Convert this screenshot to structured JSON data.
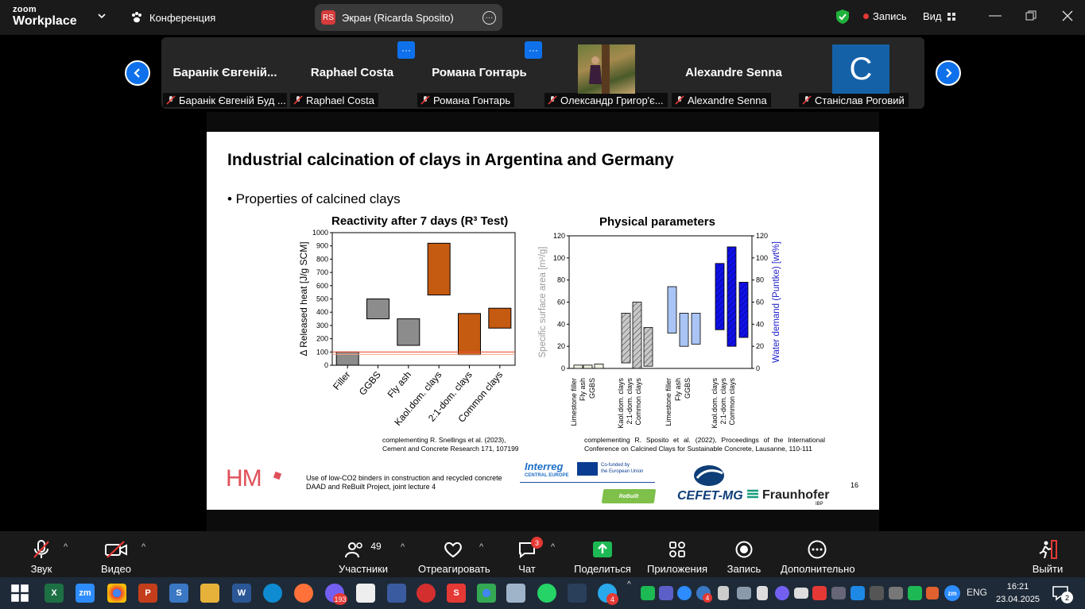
{
  "zoom": {
    "logo_top": "zoom",
    "logo_bottom": "Workplace",
    "conference_label": "Конференция",
    "share_tab": {
      "initials": "RS",
      "label": "Экран (Ricarda Sposito)"
    },
    "record_label": "Запись",
    "view_label": "Вид"
  },
  "gallery": {
    "tiles": [
      {
        "name": "Баранік Євгеній...",
        "label": "Баранік Євгеній Буд ..."
      },
      {
        "name": "Raphael Costa",
        "label": "Raphael Costa"
      },
      {
        "name": "Романа Гонтарь",
        "label": "Романа Гонтарь"
      },
      {
        "name": "",
        "label": "Олександр Григор'є..."
      },
      {
        "name": "Alexandre Senna",
        "label": "Alexandre Senna"
      },
      {
        "name": "C",
        "label": "Станіслав Роговий"
      }
    ]
  },
  "slide": {
    "title": "Industrial calcination of clays in Argentina and Germany",
    "bullet": "• Properties of calcined clays",
    "chart1_title": "Reactivity after 7 days (R³ Test)",
    "chart2_title": "Physical parameters",
    "cite1_l1": "complementing R. Snellings et al. (2023),",
    "cite1_l2": "Cement and Concrete Research 171, 107199",
    "cite2": "complementing R. Sposito et al. (2022), Proceedings of the International Conference on Calcined Clays for Sustainable Concrete, Lausanne, 110-111",
    "hm_logo": "HM",
    "footer_l1": "Use of low-CO2 binders in construction and recycled concrete",
    "footer_l2": "DAAD and ReBuilt Project, joint lecture 4",
    "interreg": "Interreg",
    "interreg_sub": "CENTRAL EUROPE",
    "eu_l1": "Co-funded by",
    "eu_l2": "the European Union",
    "rebuilt": "ReBuilt",
    "cefet": "CEFET-MG",
    "fraunhofer": "Fraunhofer",
    "ibp": "IBP",
    "page_number": "16"
  },
  "chart_data": [
    {
      "type": "bar",
      "title": "Reactivity after 7 days (R³ Test)",
      "ylabel": "Δ Released heat [J/g SCM]",
      "ylim": [
        0,
        1000
      ],
      "yticks": [
        0,
        100,
        200,
        300,
        400,
        500,
        600,
        700,
        800,
        900,
        1000
      ],
      "categories": [
        "Filler",
        "GGBS",
        "Fly ash",
        "Kaol.dom. clays",
        "2:1-dom. clays",
        "Common clays"
      ],
      "ranges": [
        [
          0,
          100
        ],
        [
          350,
          500
        ],
        [
          150,
          350
        ],
        [
          530,
          920
        ],
        [
          80,
          390
        ],
        [
          280,
          430
        ]
      ],
      "colors": [
        "#8c8c8c",
        "#8c8c8c",
        "#8c8c8c",
        "#c55a11",
        "#c55a11",
        "#c55a11"
      ],
      "reference_line": 100
    },
    {
      "type": "bar",
      "title": "Physical parameters",
      "ylabel_left": "Specific surface area [m²/g]",
      "ylabel_right": "Water demand (Puntke) [wt%]",
      "ylim": [
        0,
        120
      ],
      "yticks": [
        0,
        20,
        40,
        60,
        80,
        100,
        120
      ],
      "left_series": {
        "categories": [
          "Limestone filler",
          "Fly ash",
          "GGBS",
          "Kaol.dom. clays",
          "2:1-dom. clays",
          "Common clays"
        ],
        "ranges": [
          [
            0,
            3
          ],
          [
            0,
            3
          ],
          [
            0,
            4
          ],
          [
            5,
            50
          ],
          [
            0,
            60
          ],
          [
            2,
            37
          ]
        ]
      },
      "right_series": {
        "categories": [
          "Limestone filler",
          "Fly ash",
          "GGBS",
          "Kaol.dom. clays",
          "2:1-dom. clays",
          "Common clays"
        ],
        "ranges": [
          [
            32,
            74
          ],
          [
            20,
            50
          ],
          [
            22,
            50
          ],
          [
            35,
            95
          ],
          [
            20,
            110
          ],
          [
            28,
            78
          ]
        ]
      }
    }
  ],
  "controls": {
    "audio": "Звук",
    "video": "Видео",
    "participants": "Участники",
    "participants_count": "49",
    "react": "Отреагировать",
    "chat": "Чат",
    "chat_badge": "3",
    "share": "Поделиться",
    "apps": "Приложения",
    "record": "Запись",
    "more": "Дополнительно",
    "leave": "Выйти"
  },
  "taskbar": {
    "viber_badge": "193",
    "teams_badge": "4",
    "telegram_badge": "4",
    "lang": "ENG",
    "time": "16:21",
    "date": "23.04.2025",
    "notif_count": "2"
  },
  "colors": {
    "zoom_blue": "#0e71eb",
    "orange": "#c55a11",
    "grey_bar": "#8c8c8c",
    "light_blue": "#a9c4f5",
    "dark_blue": "#1010e8"
  }
}
